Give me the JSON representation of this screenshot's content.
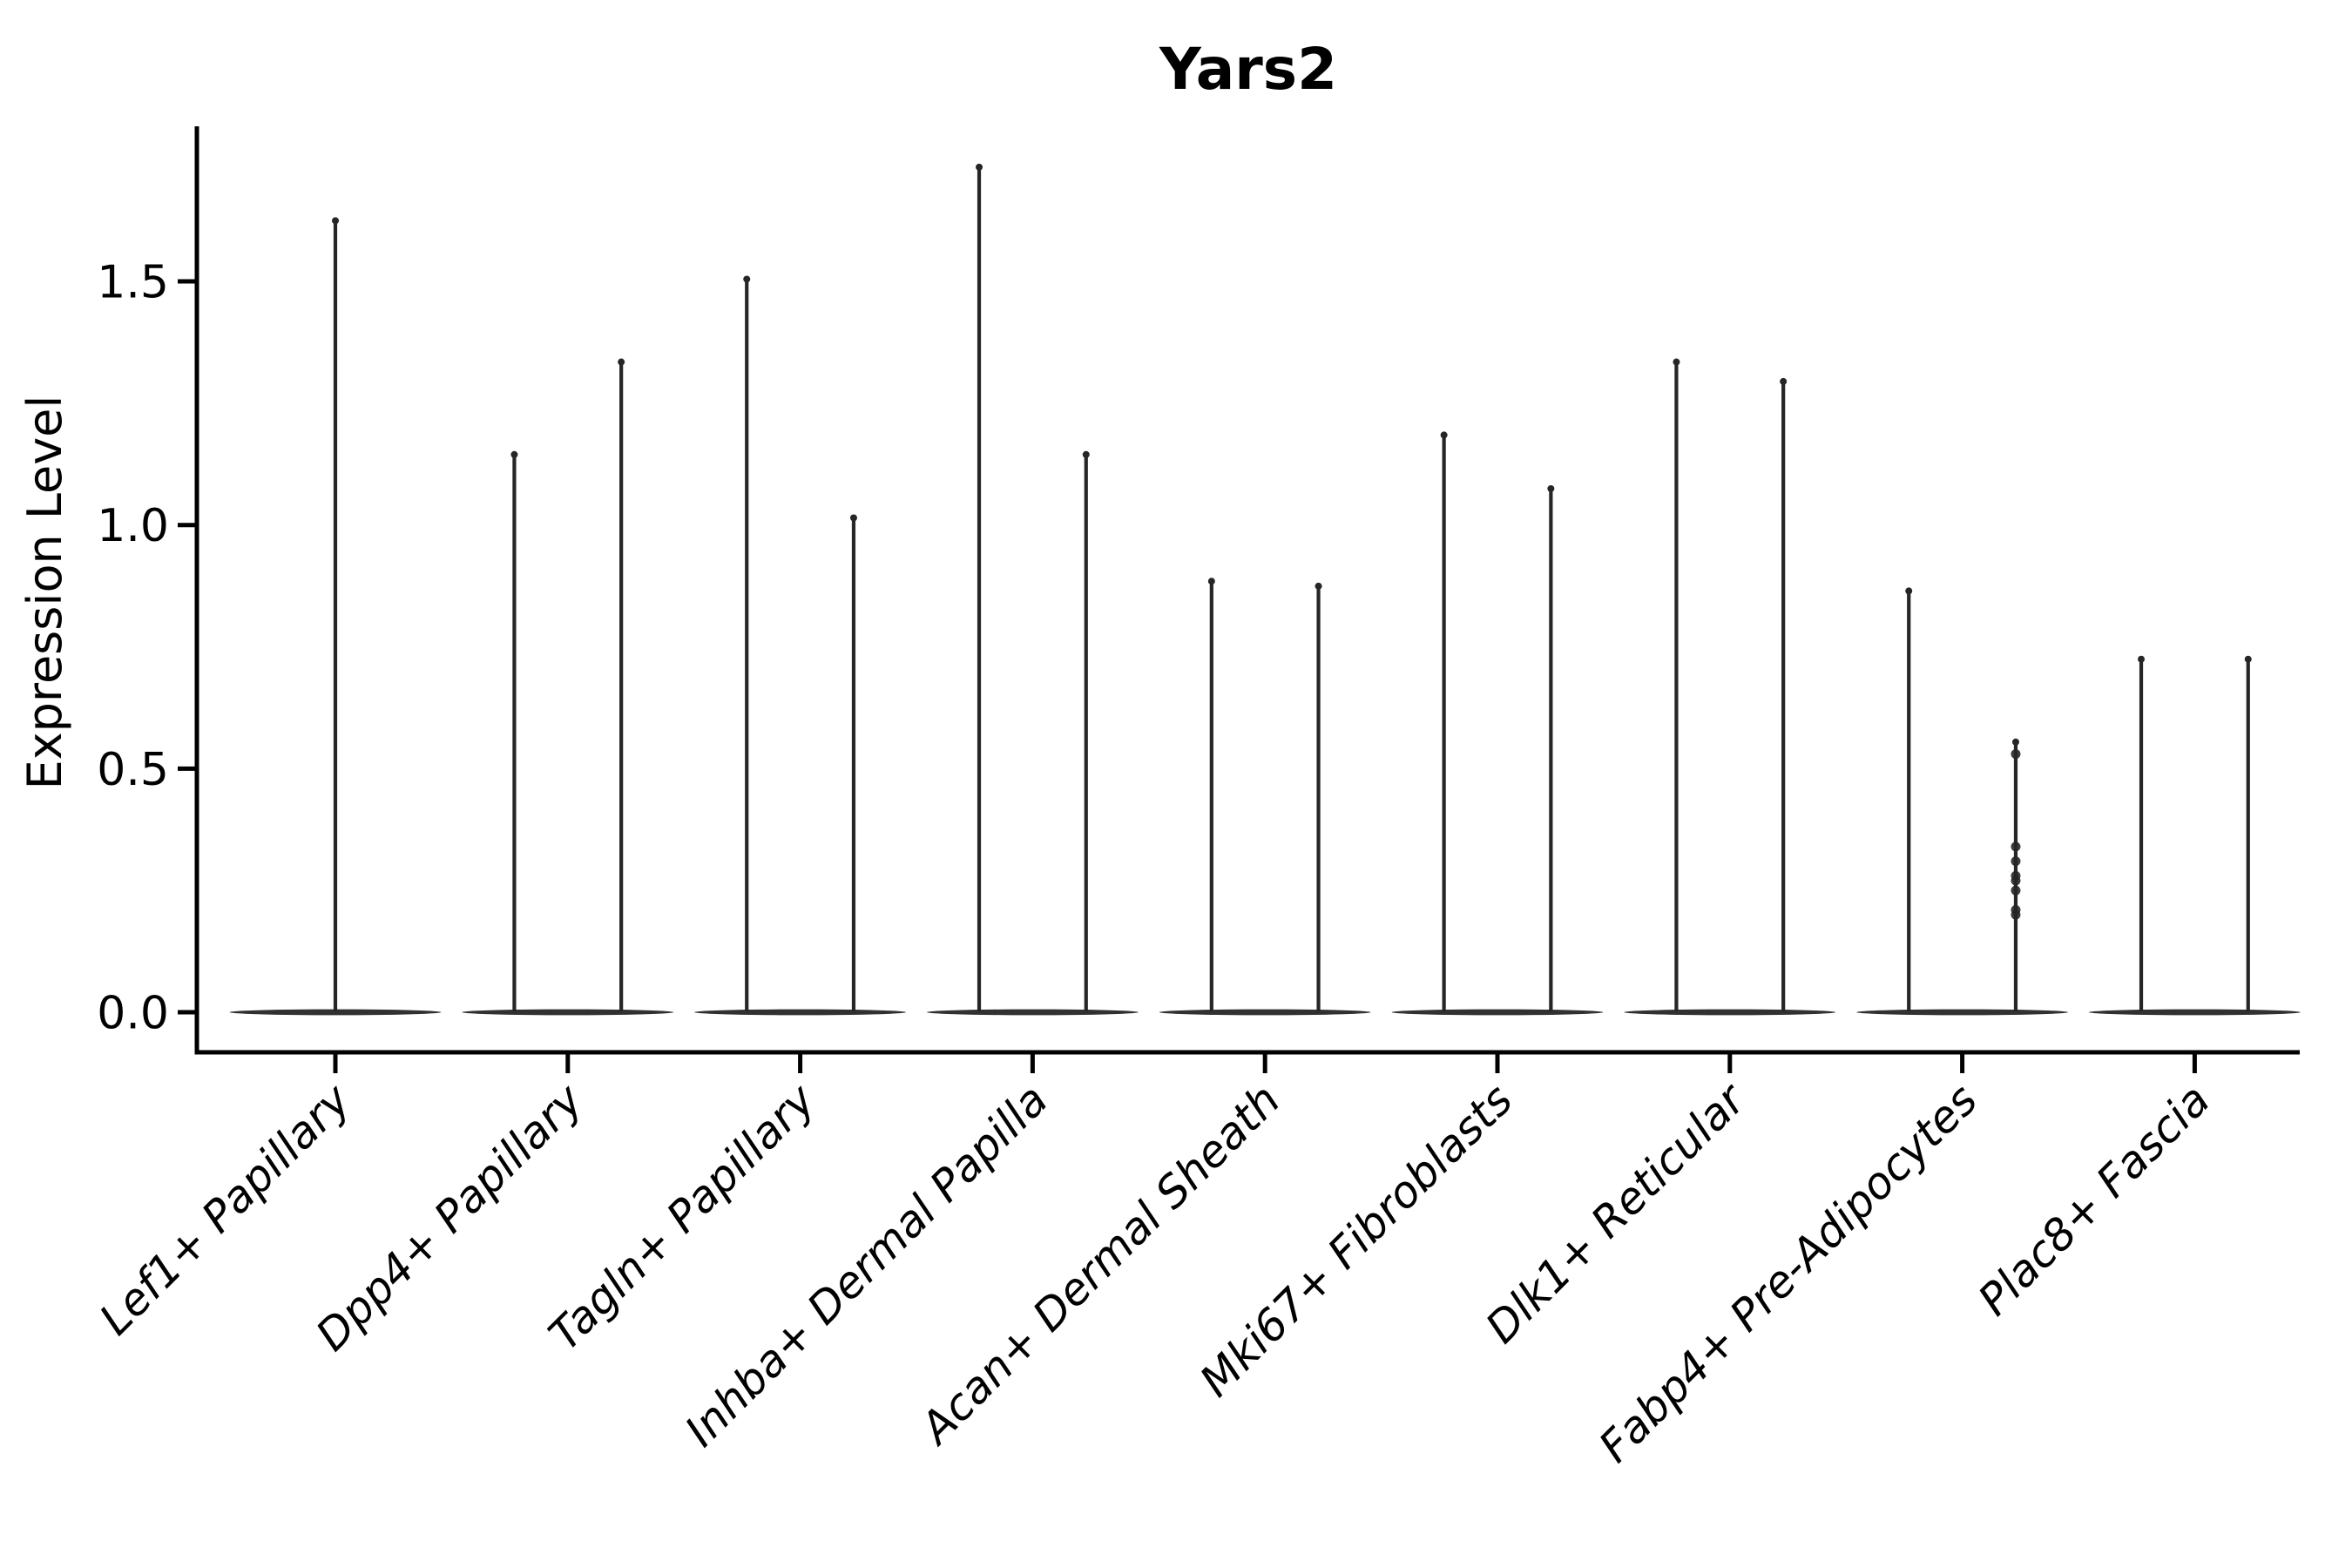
{
  "figure": {
    "title": "Yars2",
    "y_axis_label": "Expression Level"
  },
  "chart_data": {
    "type": "violin",
    "title": "Yars2",
    "xlabel": "",
    "ylabel": "Expression Level",
    "grid": false,
    "legend": "none",
    "ylim": [
      -0.08,
      1.81
    ],
    "ytick_labels": [
      "0.0",
      "0.5",
      "1.0",
      "1.5"
    ],
    "ytick_values": [
      0.0,
      0.5,
      1.0,
      1.5
    ],
    "categories": [
      "Lef1+ Papillary",
      "Dpp4+ Papillary",
      "Tagln+ Papillary",
      "Inhba+ Dermal Papilla",
      "Acan+ Dermal Sheath",
      "Mki67+ Fibroblasts",
      "Dlk1+ Reticular",
      "Fabp4+ Pre-Adipocytes",
      "Plac8+ Fascia"
    ],
    "violins": [
      {
        "category": "Lef1+ Papillary",
        "spikes": [
          {
            "offset": 0.0,
            "max": 1.63,
            "points": []
          }
        ]
      },
      {
        "category": "Dpp4+ Papillary",
        "spikes": [
          {
            "offset": -0.23,
            "max": 1.15,
            "points": []
          },
          {
            "offset": 0.23,
            "max": 1.34,
            "points": []
          }
        ]
      },
      {
        "category": "Tagln+ Papillary",
        "spikes": [
          {
            "offset": -0.23,
            "max": 1.51,
            "points": []
          },
          {
            "offset": 0.23,
            "max": 1.02,
            "points": []
          }
        ]
      },
      {
        "category": "Inhba+ Dermal Papilla",
        "spikes": [
          {
            "offset": -0.23,
            "max": 1.74,
            "points": []
          },
          {
            "offset": 0.23,
            "max": 1.15,
            "points": []
          }
        ]
      },
      {
        "category": "Acan+ Dermal Sheath",
        "spikes": [
          {
            "offset": -0.23,
            "max": 0.89,
            "points": []
          },
          {
            "offset": 0.23,
            "max": 0.88,
            "points": []
          }
        ]
      },
      {
        "category": "Mki67+ Fibroblasts",
        "spikes": [
          {
            "offset": -0.23,
            "max": 1.19,
            "points": []
          },
          {
            "offset": 0.23,
            "max": 1.08,
            "points": []
          }
        ]
      },
      {
        "category": "Dlk1+ Reticular",
        "spikes": [
          {
            "offset": -0.23,
            "max": 1.34,
            "points": []
          },
          {
            "offset": 0.23,
            "max": 1.3,
            "points": []
          }
        ]
      },
      {
        "category": "Fabp4+ Pre-Adipocytes",
        "spikes": [
          {
            "offset": -0.23,
            "max": 0.87,
            "points": []
          },
          {
            "offset": 0.23,
            "max": 0.56,
            "points": [
              0.53,
              0.34,
              0.31,
              0.28,
              0.27,
              0.25,
              0.21,
              0.2
            ]
          }
        ]
      },
      {
        "category": "Plac8+ Fascia",
        "spikes": [
          {
            "offset": -0.23,
            "max": 0.73,
            "points": []
          },
          {
            "offset": 0.23,
            "max": 0.73,
            "points": []
          }
        ]
      }
    ],
    "base_halfwidth_units": 0.455,
    "colors": {
      "violin": "#262626",
      "axis": "#000000",
      "text": "#000000",
      "background": "#ffffff"
    }
  }
}
